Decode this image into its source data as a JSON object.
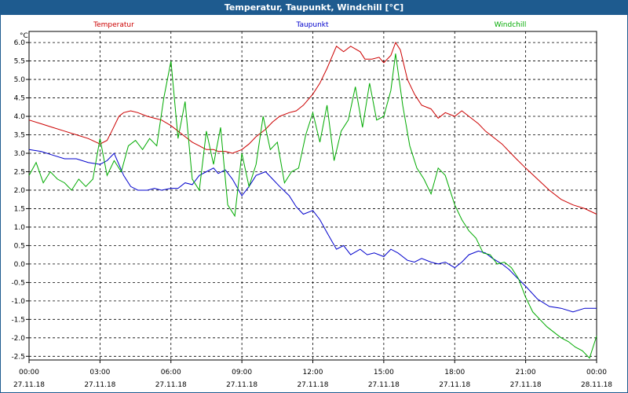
{
  "window": {
    "title": "Temperatur, Taupunkt, Windchill [°C]"
  },
  "chart_data": {
    "type": "line",
    "title": "Temperatur, Taupunkt, Windchill [°C]",
    "ylabel": "°C",
    "xlabel": "",
    "ylim": [
      -2.6,
      6.3
    ],
    "xlim": [
      0,
      24
    ],
    "grid": true,
    "y_ticks": [
      "6.0",
      "5.5",
      "5.0",
      "4.5",
      "4.0",
      "3.5",
      "3.0",
      "2.5",
      "2.0",
      "1.5",
      "1.0",
      "0.5",
      "0.0",
      "-0.5",
      "-1.0",
      "-1.5",
      "-2.0",
      "-2.5"
    ],
    "x_ticks": [
      {
        "time": "00:00",
        "date": "27.11.18"
      },
      {
        "time": "03:00",
        "date": "27.11.18"
      },
      {
        "time": "06:00",
        "date": "27.11.18"
      },
      {
        "time": "09:00",
        "date": "27.11.18"
      },
      {
        "time": "12:00",
        "date": "27.11.18"
      },
      {
        "time": "15:00",
        "date": "27.11.18"
      },
      {
        "time": "18:00",
        "date": "27.11.18"
      },
      {
        "time": "21:00",
        "date": "27.11.18"
      },
      {
        "time": "00:00",
        "date": "28.11.18"
      }
    ],
    "series": [
      {
        "name": "Temperatur",
        "color": "#cc0000",
        "legend_pos": "top-left",
        "x": [
          0,
          0.5,
          1,
          1.5,
          2,
          2.5,
          3,
          3.3,
          3.5,
          3.8,
          4,
          4.3,
          4.6,
          5,
          5.3,
          5.6,
          6,
          6.3,
          6.6,
          6.9,
          7.2,
          7.5,
          7.8,
          8,
          8.3,
          8.6,
          9,
          9.3,
          9.6,
          10,
          10.3,
          10.6,
          11,
          11.3,
          11.6,
          12,
          12.3,
          12.6,
          13,
          13.3,
          13.6,
          14,
          14.2,
          14.5,
          14.8,
          15,
          15.3,
          15.5,
          15.7,
          16,
          16.3,
          16.6,
          17,
          17.3,
          17.6,
          18,
          18.3,
          18.6,
          19,
          19.3,
          19.6,
          20,
          20.3,
          20.6,
          21,
          21.5,
          22,
          22.5,
          23,
          23.5,
          24
        ],
        "values": [
          3.9,
          3.8,
          3.7,
          3.6,
          3.5,
          3.4,
          3.25,
          3.35,
          3.6,
          4.0,
          4.1,
          4.15,
          4.1,
          4.0,
          3.95,
          3.9,
          3.75,
          3.6,
          3.45,
          3.3,
          3.2,
          3.1,
          3.1,
          3.05,
          3.05,
          3.0,
          3.1,
          3.25,
          3.45,
          3.65,
          3.85,
          4.0,
          4.1,
          4.15,
          4.3,
          4.6,
          4.9,
          5.3,
          5.9,
          5.75,
          5.9,
          5.75,
          5.55,
          5.55,
          5.6,
          5.45,
          5.65,
          6.0,
          5.8,
          5.0,
          4.6,
          4.3,
          4.2,
          3.95,
          4.1,
          4.0,
          4.15,
          4.0,
          3.8,
          3.6,
          3.45,
          3.25,
          3.05,
          2.85,
          2.6,
          2.3,
          2.0,
          1.75,
          1.6,
          1.5,
          1.35
        ]
      },
      {
        "name": "Taupunkt",
        "color": "#0000cc",
        "legend_pos": "top-center",
        "x": [
          0,
          0.5,
          1,
          1.5,
          2,
          2.5,
          3,
          3.3,
          3.6,
          4,
          4.3,
          4.6,
          5,
          5.3,
          5.6,
          6,
          6.3,
          6.6,
          6.9,
          7.2,
          7.5,
          7.8,
          8,
          8.3,
          8.6,
          9,
          9.3,
          9.6,
          10,
          10.3,
          10.6,
          11,
          11.3,
          11.6,
          12,
          12.3,
          12.6,
          13,
          13.3,
          13.6,
          14,
          14.3,
          14.6,
          15,
          15.3,
          15.6,
          16,
          16.3,
          16.6,
          17,
          17.3,
          17.6,
          18,
          18.3,
          18.6,
          19,
          19.3,
          19.6,
          20,
          20.3,
          20.6,
          21,
          21.5,
          22,
          22.5,
          23,
          23.5,
          24
        ],
        "values": [
          3.1,
          3.05,
          2.95,
          2.85,
          2.85,
          2.75,
          2.7,
          2.8,
          3.0,
          2.4,
          2.1,
          2.0,
          2.0,
          2.05,
          2.0,
          2.05,
          2.05,
          2.2,
          2.15,
          2.4,
          2.5,
          2.6,
          2.45,
          2.55,
          2.3,
          1.85,
          2.1,
          2.4,
          2.5,
          2.3,
          2.1,
          1.85,
          1.55,
          1.35,
          1.45,
          1.2,
          0.85,
          0.4,
          0.5,
          0.25,
          0.4,
          0.25,
          0.3,
          0.2,
          0.4,
          0.3,
          0.1,
          0.05,
          0.15,
          0.05,
          0.0,
          0.05,
          -0.1,
          0.05,
          0.25,
          0.35,
          0.3,
          0.15,
          0.0,
          -0.15,
          -0.35,
          -0.6,
          -0.95,
          -1.15,
          -1.2,
          -1.3,
          -1.2,
          -1.2
        ]
      },
      {
        "name": "Windchill",
        "color": "#00aa00",
        "legend_pos": "top-right",
        "x": [
          0,
          0.3,
          0.6,
          0.9,
          1.2,
          1.5,
          1.8,
          2.1,
          2.4,
          2.7,
          3,
          3.3,
          3.6,
          3.9,
          4.2,
          4.5,
          4.8,
          5.1,
          5.4,
          5.7,
          6,
          6.3,
          6.6,
          6.9,
          7.2,
          7.5,
          7.8,
          8.1,
          8.4,
          8.7,
          9,
          9.3,
          9.6,
          9.9,
          10.2,
          10.5,
          10.8,
          11.1,
          11.4,
          11.7,
          12,
          12.3,
          12.6,
          12.9,
          13.2,
          13.5,
          13.8,
          14.1,
          14.4,
          14.7,
          15,
          15.3,
          15.5,
          15.8,
          16.1,
          16.4,
          16.7,
          17,
          17.3,
          17.6,
          18,
          18.3,
          18.6,
          18.9,
          19.2,
          19.5,
          19.8,
          20.1,
          20.4,
          20.7,
          21,
          21.3,
          21.6,
          21.9,
          22.2,
          22.5,
          22.8,
          23.1,
          23.4,
          23.7,
          24
        ],
        "values": [
          2.4,
          2.75,
          2.2,
          2.5,
          2.3,
          2.2,
          2.0,
          2.3,
          2.1,
          2.3,
          3.4,
          2.4,
          2.8,
          2.5,
          3.2,
          3.35,
          3.1,
          3.4,
          3.2,
          4.5,
          5.5,
          3.4,
          4.4,
          2.3,
          2.0,
          3.6,
          2.7,
          3.7,
          1.6,
          1.3,
          3.0,
          2.1,
          2.7,
          4.0,
          3.1,
          3.3,
          2.2,
          2.5,
          2.6,
          3.5,
          4.1,
          3.3,
          4.3,
          2.8,
          3.6,
          3.9,
          4.8,
          3.7,
          4.9,
          3.9,
          4.0,
          4.7,
          5.7,
          4.3,
          3.2,
          2.6,
          2.3,
          1.9,
          2.6,
          2.4,
          1.6,
          1.2,
          0.9,
          0.7,
          0.3,
          0.25,
          0.0,
          0.05,
          -0.1,
          -0.4,
          -0.9,
          -1.3,
          -1.5,
          -1.7,
          -1.85,
          -2.0,
          -2.1,
          -2.25,
          -2.35,
          -2.55,
          -1.95
        ]
      }
    ]
  }
}
